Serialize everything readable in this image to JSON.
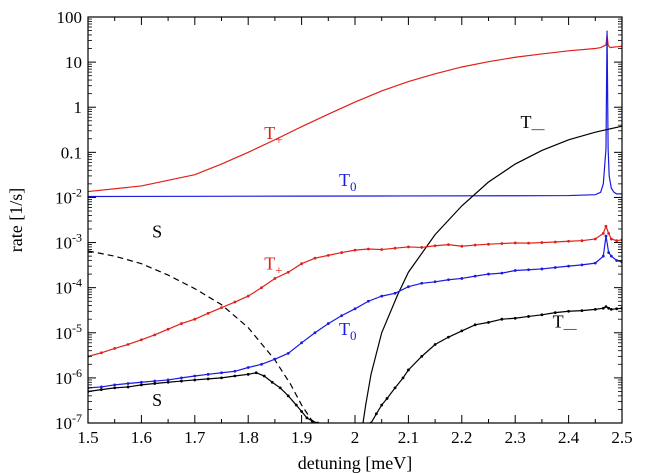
{
  "chart_data": {
    "type": "line",
    "xlabel": "detuning [meV]",
    "ylabel": "rate [1/s]",
    "xlim": [
      1.5,
      2.5
    ],
    "ylim": [
      1e-07,
      100
    ],
    "yscale": "log",
    "grid": false,
    "legend": "none",
    "x_ticks": [
      "1.5",
      "1.6",
      "1.7",
      "1.8",
      "1.9",
      "2",
      "2.1",
      "2.2",
      "2.3",
      "2.4",
      "2.5"
    ],
    "y_ticks": [
      {
        "base": "10",
        "exp": "-7"
      },
      {
        "base": "10",
        "exp": "-6"
      },
      {
        "base": "10",
        "exp": "-5"
      },
      {
        "base": "10",
        "exp": "-4"
      },
      {
        "base": "10",
        "exp": "-3"
      },
      {
        "base": "10",
        "exp": "-2"
      },
      {
        "base": "",
        "exp": "",
        "text": "0.1"
      },
      {
        "base": "",
        "exp": "",
        "text": "1"
      },
      {
        "base": "",
        "exp": "",
        "text": "10"
      },
      {
        "base": "",
        "exp": "",
        "text": "100"
      }
    ],
    "annotations": [
      {
        "base": "T",
        "sub": "+",
        "color": "#e0201a",
        "x": 1.83,
        "y": 0.2
      },
      {
        "base": "T",
        "sub": "0",
        "color": "#1a1ae0",
        "x": 1.97,
        "y": 0.018
      },
      {
        "base": "T",
        "sub": "+",
        "color": "#e0201a",
        "x": 1.83,
        "y": 0.00025
      },
      {
        "base": "T",
        "sub": "0",
        "color": "#1a1ae0",
        "x": 1.97,
        "y": 9e-06
      },
      {
        "base": "T",
        "sub": "—",
        "color": "#000000",
        "x": 2.31,
        "y": 0.35
      },
      {
        "base": "T",
        "sub": "—",
        "color": "#000000",
        "x": 2.37,
        "y": 1.3e-05
      },
      {
        "base": "S",
        "sub": "",
        "color": "#000000",
        "x": 1.62,
        "y": 0.0013
      },
      {
        "base": "S",
        "sub": "",
        "color": "#000000",
        "x": 1.62,
        "y": 2.4e-07
      }
    ],
    "series": [
      {
        "name": "T+ smooth",
        "color": "#e0201a",
        "style": "solid",
        "markers": false,
        "x": [
          1.5,
          1.6,
          1.7,
          1.75,
          1.8,
          1.85,
          1.9,
          1.95,
          2.0,
          2.05,
          2.1,
          2.15,
          2.2,
          2.25,
          2.3,
          2.35,
          2.4,
          2.45,
          2.46,
          2.47,
          2.472,
          2.474,
          2.476,
          2.478,
          2.48,
          2.49,
          2.5
        ],
        "y": [
          0.0135,
          0.018,
          0.032,
          0.055,
          0.1,
          0.19,
          0.37,
          0.7,
          1.3,
          2.3,
          3.7,
          5.5,
          7.8,
          10.2,
          12.8,
          15.2,
          17.8,
          20.0,
          21.0,
          24.0,
          40.0,
          24.0,
          22.0,
          21.0,
          21.2,
          21.8,
          22.5
        ]
      },
      {
        "name": "T0 smooth",
        "color": "#1a1ae0",
        "style": "solid",
        "markers": false,
        "x": [
          1.5,
          1.7,
          1.9,
          2.1,
          2.3,
          2.4,
          2.45,
          2.46,
          2.465,
          2.47,
          2.472,
          2.474,
          2.476,
          2.48,
          2.485,
          2.49,
          2.5
        ],
        "y": [
          0.0105,
          0.0106,
          0.0107,
          0.0108,
          0.0109,
          0.011,
          0.0115,
          0.013,
          0.02,
          0.12,
          50.0,
          0.12,
          0.03,
          0.016,
          0.013,
          0.012,
          0.012
        ]
      },
      {
        "name": "T- smooth",
        "color": "#000000",
        "style": "solid",
        "markers": false,
        "x": [
          2.015,
          2.02,
          2.03,
          2.05,
          2.08,
          2.1,
          2.15,
          2.2,
          2.25,
          2.3,
          2.35,
          2.4,
          2.45,
          2.5
        ],
        "y": [
          1e-07,
          2.5e-07,
          1.2e-06,
          1e-05,
          7e-05,
          0.00022,
          0.0015,
          0.0065,
          0.022,
          0.055,
          0.11,
          0.19,
          0.28,
          0.38
        ]
      },
      {
        "name": "S smooth",
        "color": "#000000",
        "style": "dashed",
        "markers": false,
        "x": [
          1.5,
          1.55,
          1.6,
          1.65,
          1.7,
          1.75,
          1.8,
          1.85,
          1.88,
          1.9,
          1.92,
          1.93
        ],
        "y": [
          0.00065,
          0.0005,
          0.00034,
          0.00019,
          9.5e-05,
          4.2e-05,
          1.3e-05,
          2.5e-06,
          7e-07,
          2.5e-07,
          1.1e-07,
          1e-07
        ]
      },
      {
        "name": "T+ simulated",
        "color": "#e0201a",
        "style": "solid",
        "markers": true,
        "x": [
          1.5,
          1.525,
          1.55,
          1.575,
          1.6,
          1.625,
          1.65,
          1.675,
          1.7,
          1.725,
          1.75,
          1.775,
          1.8,
          1.825,
          1.85,
          1.875,
          1.9,
          1.925,
          1.95,
          1.975,
          2.0,
          2.025,
          2.05,
          2.075,
          2.1,
          2.125,
          2.15,
          2.175,
          2.2,
          2.225,
          2.25,
          2.275,
          2.3,
          2.325,
          2.35,
          2.375,
          2.4,
          2.425,
          2.45,
          2.465,
          2.47,
          2.475,
          2.48,
          2.49,
          2.5
        ],
        "y": [
          3e-06,
          3.6e-06,
          4.5e-06,
          5.5e-06,
          7e-06,
          9e-06,
          1.2e-05,
          1.6e-05,
          2e-05,
          2.7e-05,
          3.6e-05,
          4.8e-05,
          6.5e-05,
          0.0001,
          0.00016,
          0.00022,
          0.00034,
          0.00045,
          0.00052,
          0.0006,
          0.00068,
          0.00072,
          0.0007,
          0.00075,
          0.0008,
          0.00078,
          0.00085,
          0.0009,
          0.00083,
          0.00088,
          0.00092,
          0.00095,
          0.00098,
          0.00097,
          0.001,
          0.00103,
          0.00107,
          0.0011,
          0.0012,
          0.0016,
          0.0023,
          0.0016,
          0.0012,
          0.0011,
          0.00115
        ]
      },
      {
        "name": "T0 simulated",
        "color": "#1a1ae0",
        "style": "solid",
        "markers": true,
        "x": [
          1.5,
          1.525,
          1.55,
          1.575,
          1.6,
          1.625,
          1.65,
          1.675,
          1.7,
          1.725,
          1.75,
          1.775,
          1.8,
          1.825,
          1.85,
          1.875,
          1.9,
          1.925,
          1.95,
          1.975,
          2.0,
          2.025,
          2.05,
          2.075,
          2.1,
          2.125,
          2.15,
          2.175,
          2.2,
          2.225,
          2.25,
          2.275,
          2.3,
          2.325,
          2.35,
          2.375,
          2.4,
          2.425,
          2.45,
          2.465,
          2.47,
          2.475,
          2.48,
          2.49,
          2.5
        ],
        "y": [
          6e-07,
          6.3e-07,
          7e-07,
          7.5e-07,
          8e-07,
          8.5e-07,
          9e-07,
          1e-06,
          1.1e-06,
          1.2e-06,
          1.3e-06,
          1.4e-06,
          1.7e-06,
          2e-06,
          2.6e-06,
          3.5e-06,
          6e-06,
          1e-05,
          1.6e-05,
          2.4e-05,
          3.4e-05,
          5e-05,
          6.5e-05,
          7.5e-05,
          0.000105,
          0.000125,
          0.000135,
          0.00015,
          0.00016,
          0.00018,
          0.0002,
          0.00021,
          0.00024,
          0.00025,
          0.00026,
          0.00028,
          0.0003,
          0.00032,
          0.00035,
          0.0005,
          0.0014,
          0.0006,
          0.0005,
          0.0004,
          0.00037
        ]
      },
      {
        "name": "T- simulated",
        "color": "#000000",
        "style": "solid",
        "markers": true,
        "x": [
          2.03,
          2.04,
          2.05,
          2.06,
          2.075,
          2.09,
          2.1,
          2.125,
          2.15,
          2.175,
          2.2,
          2.225,
          2.25,
          2.275,
          2.3,
          2.325,
          2.35,
          2.375,
          2.4,
          2.425,
          2.45,
          2.465,
          2.47,
          2.475,
          2.48,
          2.49,
          2.5
        ],
        "y": [
          1e-07,
          1.6e-07,
          2.5e-07,
          3.5e-07,
          6e-07,
          1e-06,
          1.5e-06,
          3e-06,
          5.5e-06,
          8e-06,
          1.1e-05,
          1.5e-05,
          1.7e-05,
          2e-05,
          2.1e-05,
          2.3e-05,
          2.5e-05,
          2.8e-05,
          3e-05,
          3.1e-05,
          3.3e-05,
          3.5e-05,
          3.8e-05,
          3.5e-05,
          3.3e-05,
          3.4e-05,
          3.5e-05
        ]
      },
      {
        "name": "S simulated",
        "color": "#000000",
        "style": "solid",
        "markers": true,
        "x": [
          1.5,
          1.525,
          1.55,
          1.575,
          1.6,
          1.625,
          1.65,
          1.675,
          1.7,
          1.725,
          1.75,
          1.775,
          1.8,
          1.815,
          1.83,
          1.845,
          1.86,
          1.875,
          1.89,
          1.9,
          1.91,
          1.92,
          1.93
        ],
        "y": [
          5e-07,
          5.5e-07,
          6e-07,
          6.3e-07,
          7e-07,
          7.5e-07,
          8e-07,
          8.5e-07,
          9e-07,
          9.5e-07,
          1e-06,
          1.1e-06,
          1.2e-06,
          1.3e-06,
          1.1e-06,
          8e-07,
          6e-07,
          4e-07,
          2.5e-07,
          1.8e-07,
          1.3e-07,
          1.1e-07,
          1e-07
        ]
      }
    ]
  }
}
